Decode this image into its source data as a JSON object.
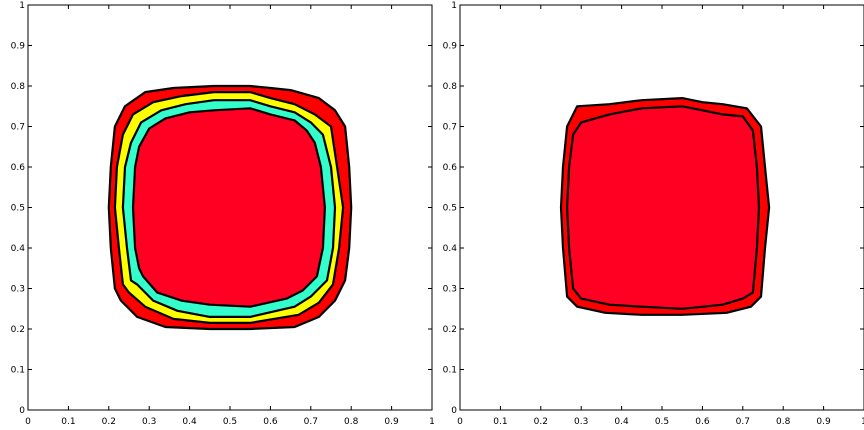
{
  "chart_data": [
    {
      "type": "contour",
      "title": "",
      "xlabel": "",
      "ylabel": "",
      "xlim": [
        0,
        1
      ],
      "ylim": [
        0,
        1
      ],
      "grid": false,
      "legend": "none",
      "xticks": [
        "0",
        "0.1",
        "0.2",
        "0.3",
        "0.4",
        "0.5",
        "0.6",
        "0.7",
        "0.8",
        "0.9",
        "1"
      ],
      "yticks": [
        "0",
        "0.1",
        "0.2",
        "0.3",
        "0.4",
        "0.5",
        "0.6",
        "0.7",
        "0.8",
        "0.9",
        "1"
      ],
      "levels": [
        {
          "fill": "#ff0000",
          "points": [
            [
              0.46,
              0.8
            ],
            [
              0.55,
              0.8
            ],
            [
              0.6,
              0.795
            ],
            [
              0.65,
              0.79
            ],
            [
              0.72,
              0.77
            ],
            [
              0.76,
              0.74
            ],
            [
              0.785,
              0.7
            ],
            [
              0.795,
              0.6
            ],
            [
              0.8,
              0.5
            ],
            [
              0.795,
              0.4
            ],
            [
              0.785,
              0.32
            ],
            [
              0.76,
              0.27
            ],
            [
              0.72,
              0.23
            ],
            [
              0.66,
              0.205
            ],
            [
              0.55,
              0.2
            ],
            [
              0.45,
              0.2
            ],
            [
              0.34,
              0.205
            ],
            [
              0.27,
              0.23
            ],
            [
              0.23,
              0.27
            ],
            [
              0.215,
              0.3
            ],
            [
              0.205,
              0.4
            ],
            [
              0.2,
              0.5
            ],
            [
              0.205,
              0.6
            ],
            [
              0.215,
              0.7
            ],
            [
              0.24,
              0.75
            ],
            [
              0.29,
              0.785
            ],
            [
              0.36,
              0.795
            ]
          ]
        },
        {
          "fill": "#ffff00",
          "points": [
            [
              0.46,
              0.785
            ],
            [
              0.55,
              0.785
            ],
            [
              0.6,
              0.77
            ],
            [
              0.66,
              0.755
            ],
            [
              0.71,
              0.73
            ],
            [
              0.75,
              0.7
            ],
            [
              0.765,
              0.6
            ],
            [
              0.78,
              0.5
            ],
            [
              0.77,
              0.4
            ],
            [
              0.755,
              0.31
            ],
            [
              0.72,
              0.265
            ],
            [
              0.67,
              0.235
            ],
            [
              0.55,
              0.215
            ],
            [
              0.45,
              0.215
            ],
            [
              0.36,
              0.225
            ],
            [
              0.29,
              0.255
            ],
            [
              0.25,
              0.29
            ],
            [
              0.235,
              0.31
            ],
            [
              0.225,
              0.4
            ],
            [
              0.215,
              0.5
            ],
            [
              0.22,
              0.6
            ],
            [
              0.235,
              0.68
            ],
            [
              0.26,
              0.73
            ],
            [
              0.31,
              0.76
            ],
            [
              0.38,
              0.775
            ]
          ]
        },
        {
          "fill": "#33ffcc",
          "points": [
            [
              0.46,
              0.765
            ],
            [
              0.55,
              0.765
            ],
            [
              0.6,
              0.75
            ],
            [
              0.66,
              0.735
            ],
            [
              0.7,
              0.71
            ],
            [
              0.73,
              0.68
            ],
            [
              0.75,
              0.6
            ],
            [
              0.76,
              0.5
            ],
            [
              0.755,
              0.4
            ],
            [
              0.74,
              0.32
            ],
            [
              0.7,
              0.28
            ],
            [
              0.66,
              0.255
            ],
            [
              0.55,
              0.23
            ],
            [
              0.45,
              0.23
            ],
            [
              0.37,
              0.245
            ],
            [
              0.31,
              0.27
            ],
            [
              0.27,
              0.31
            ],
            [
              0.255,
              0.32
            ],
            [
              0.245,
              0.4
            ],
            [
              0.235,
              0.5
            ],
            [
              0.24,
              0.6
            ],
            [
              0.255,
              0.66
            ],
            [
              0.28,
              0.71
            ],
            [
              0.33,
              0.74
            ],
            [
              0.39,
              0.755
            ]
          ]
        },
        {
          "fill": "#ff0022",
          "points": [
            [
              0.46,
              0.74
            ],
            [
              0.55,
              0.745
            ],
            [
              0.6,
              0.73
            ],
            [
              0.66,
              0.715
            ],
            [
              0.69,
              0.69
            ],
            [
              0.71,
              0.66
            ],
            [
              0.725,
              0.6
            ],
            [
              0.735,
              0.5
            ],
            [
              0.73,
              0.4
            ],
            [
              0.715,
              0.33
            ],
            [
              0.68,
              0.295
            ],
            [
              0.64,
              0.275
            ],
            [
              0.55,
              0.255
            ],
            [
              0.45,
              0.26
            ],
            [
              0.38,
              0.27
            ],
            [
              0.32,
              0.29
            ],
            [
              0.285,
              0.33
            ],
            [
              0.275,
              0.35
            ],
            [
              0.265,
              0.4
            ],
            [
              0.26,
              0.5
            ],
            [
              0.265,
              0.6
            ],
            [
              0.275,
              0.65
            ],
            [
              0.3,
              0.695
            ],
            [
              0.34,
              0.72
            ],
            [
              0.4,
              0.735
            ]
          ]
        }
      ]
    },
    {
      "type": "contour",
      "title": "",
      "xlabel": "",
      "ylabel": "",
      "xlim": [
        0,
        1
      ],
      "ylim": [
        0,
        1
      ],
      "grid": false,
      "legend": "none",
      "xticks": [
        "0",
        "0.1",
        "0.2",
        "0.3",
        "0.4",
        "0.5",
        "0.6",
        "0.7",
        "0.8",
        "0.9",
        "1"
      ],
      "yticks": [
        "0",
        "0.1",
        "0.2",
        "0.3",
        "0.4",
        "0.5",
        "0.6",
        "0.7",
        "0.8",
        "0.9",
        "1"
      ],
      "levels": [
        {
          "fill": "#ff0000",
          "points": [
            [
              0.45,
              0.765
            ],
            [
              0.55,
              0.77
            ],
            [
              0.6,
              0.76
            ],
            [
              0.65,
              0.755
            ],
            [
              0.71,
              0.745
            ],
            [
              0.745,
              0.7
            ],
            [
              0.755,
              0.6
            ],
            [
              0.765,
              0.5
            ],
            [
              0.755,
              0.4
            ],
            [
              0.745,
              0.28
            ],
            [
              0.72,
              0.255
            ],
            [
              0.66,
              0.24
            ],
            [
              0.55,
              0.235
            ],
            [
              0.45,
              0.235
            ],
            [
              0.36,
              0.24
            ],
            [
              0.29,
              0.255
            ],
            [
              0.265,
              0.28
            ],
            [
              0.255,
              0.4
            ],
            [
              0.25,
              0.5
            ],
            [
              0.255,
              0.6
            ],
            [
              0.265,
              0.7
            ],
            [
              0.29,
              0.75
            ],
            [
              0.37,
              0.755
            ]
          ]
        },
        {
          "fill": "#ff0022",
          "points": [
            [
              0.45,
              0.745
            ],
            [
              0.55,
              0.75
            ],
            [
              0.6,
              0.74
            ],
            [
              0.65,
              0.73
            ],
            [
              0.7,
              0.725
            ],
            [
              0.725,
              0.69
            ],
            [
              0.735,
              0.6
            ],
            [
              0.74,
              0.5
            ],
            [
              0.735,
              0.4
            ],
            [
              0.725,
              0.29
            ],
            [
              0.7,
              0.275
            ],
            [
              0.65,
              0.26
            ],
            [
              0.55,
              0.25
            ],
            [
              0.45,
              0.255
            ],
            [
              0.37,
              0.26
            ],
            [
              0.3,
              0.275
            ],
            [
              0.28,
              0.3
            ],
            [
              0.27,
              0.4
            ],
            [
              0.265,
              0.5
            ],
            [
              0.27,
              0.6
            ],
            [
              0.28,
              0.68
            ],
            [
              0.3,
              0.71
            ],
            [
              0.37,
              0.73
            ]
          ]
        }
      ]
    }
  ]
}
